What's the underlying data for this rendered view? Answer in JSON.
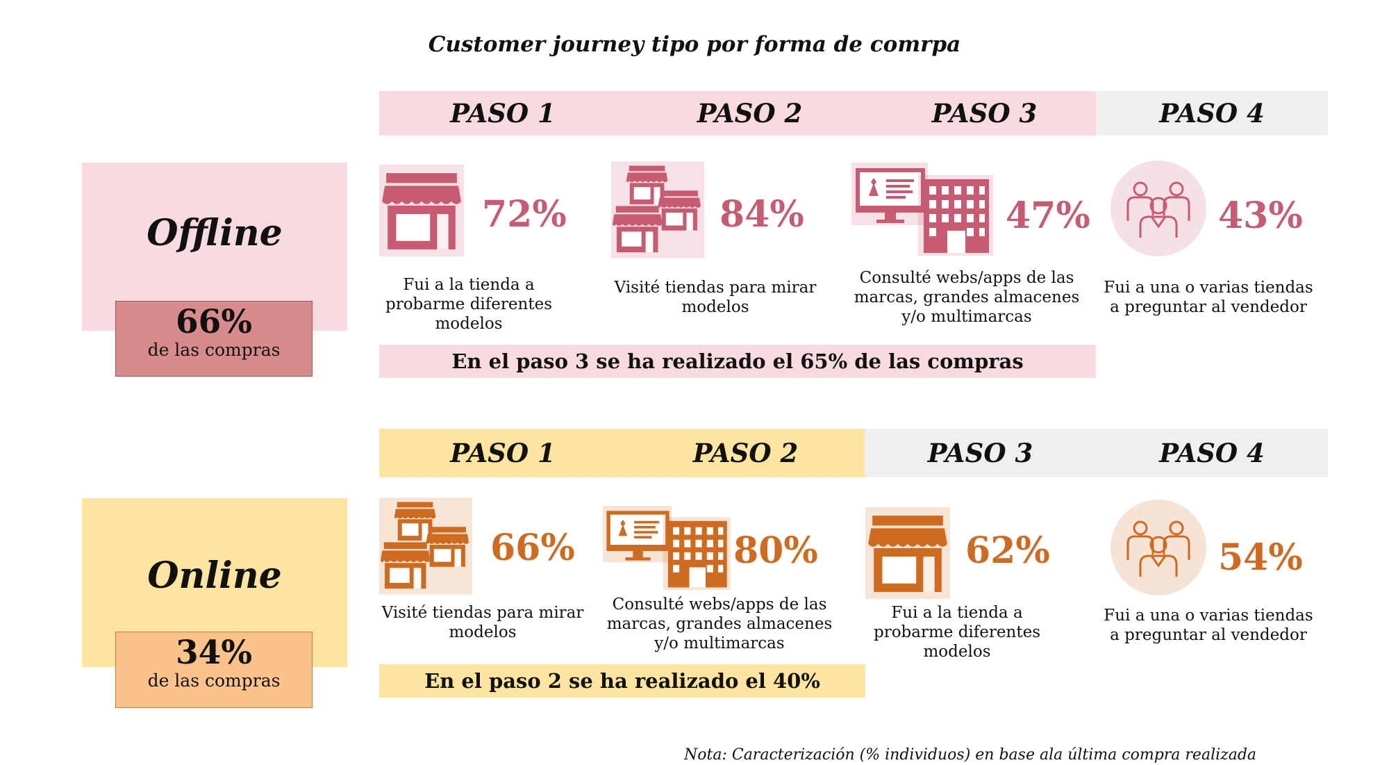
{
  "title": "Customer journey tipo por forma de comrpa",
  "colors": {
    "offline_accent": "#c65b72",
    "online_accent": "#cf6a21",
    "offline_light": "#f8dbe0",
    "online_light": "#fde4a0",
    "neutral_light": "#efefef"
  },
  "offline": {
    "label": "Offline",
    "share_pct": "66%",
    "share_text": "de las compras",
    "steps": [
      {
        "label": "PASO 1",
        "pct": "72%",
        "desc": "Fui a la tienda a probarme diferentes modelos",
        "icon": "store-icon"
      },
      {
        "label": "PASO 2",
        "pct": "84%",
        "desc": "Visité tiendas para mirar modelos",
        "icon": "multiple-stores-icon"
      },
      {
        "label": "PASO 3",
        "pct": "47%",
        "desc": "Consulté webs/apps de las marcas, grandes almacenes y/o multimarcas",
        "icon": "web-and-building-icon"
      },
      {
        "label": "PASO 4",
        "pct": "43%",
        "desc": "Fui a una o varias tiendas a preguntar al vendedor",
        "icon": "people-group-icon"
      }
    ],
    "summary": "En el paso 3 se ha realizado el 65% de las compras"
  },
  "online": {
    "label": "Online",
    "share_pct": "34%",
    "share_text": "de las compras",
    "steps": [
      {
        "label": "PASO 1",
        "pct": "66%",
        "desc": "Visité tiendas para mirar modelos",
        "icon": "multiple-stores-icon"
      },
      {
        "label": "PASO 2",
        "pct": "80%",
        "desc": "Consulté webs/apps de las marcas, grandes almacenes y/o multimarcas",
        "icon": "web-and-building-icon"
      },
      {
        "label": "PASO 3",
        "pct": "62%",
        "desc": "Fui a la tienda a probarme diferentes modelos",
        "icon": "store-icon"
      },
      {
        "label": "PASO 4",
        "pct": "54%",
        "desc": "Fui a una o varias tiendas a preguntar al vendedor",
        "icon": "people-group-icon"
      }
    ],
    "summary": "En el paso 2 se ha realizado el 40%"
  },
  "note": "Nota: Caracterización (% individuos) en base ala última compra realizada"
}
